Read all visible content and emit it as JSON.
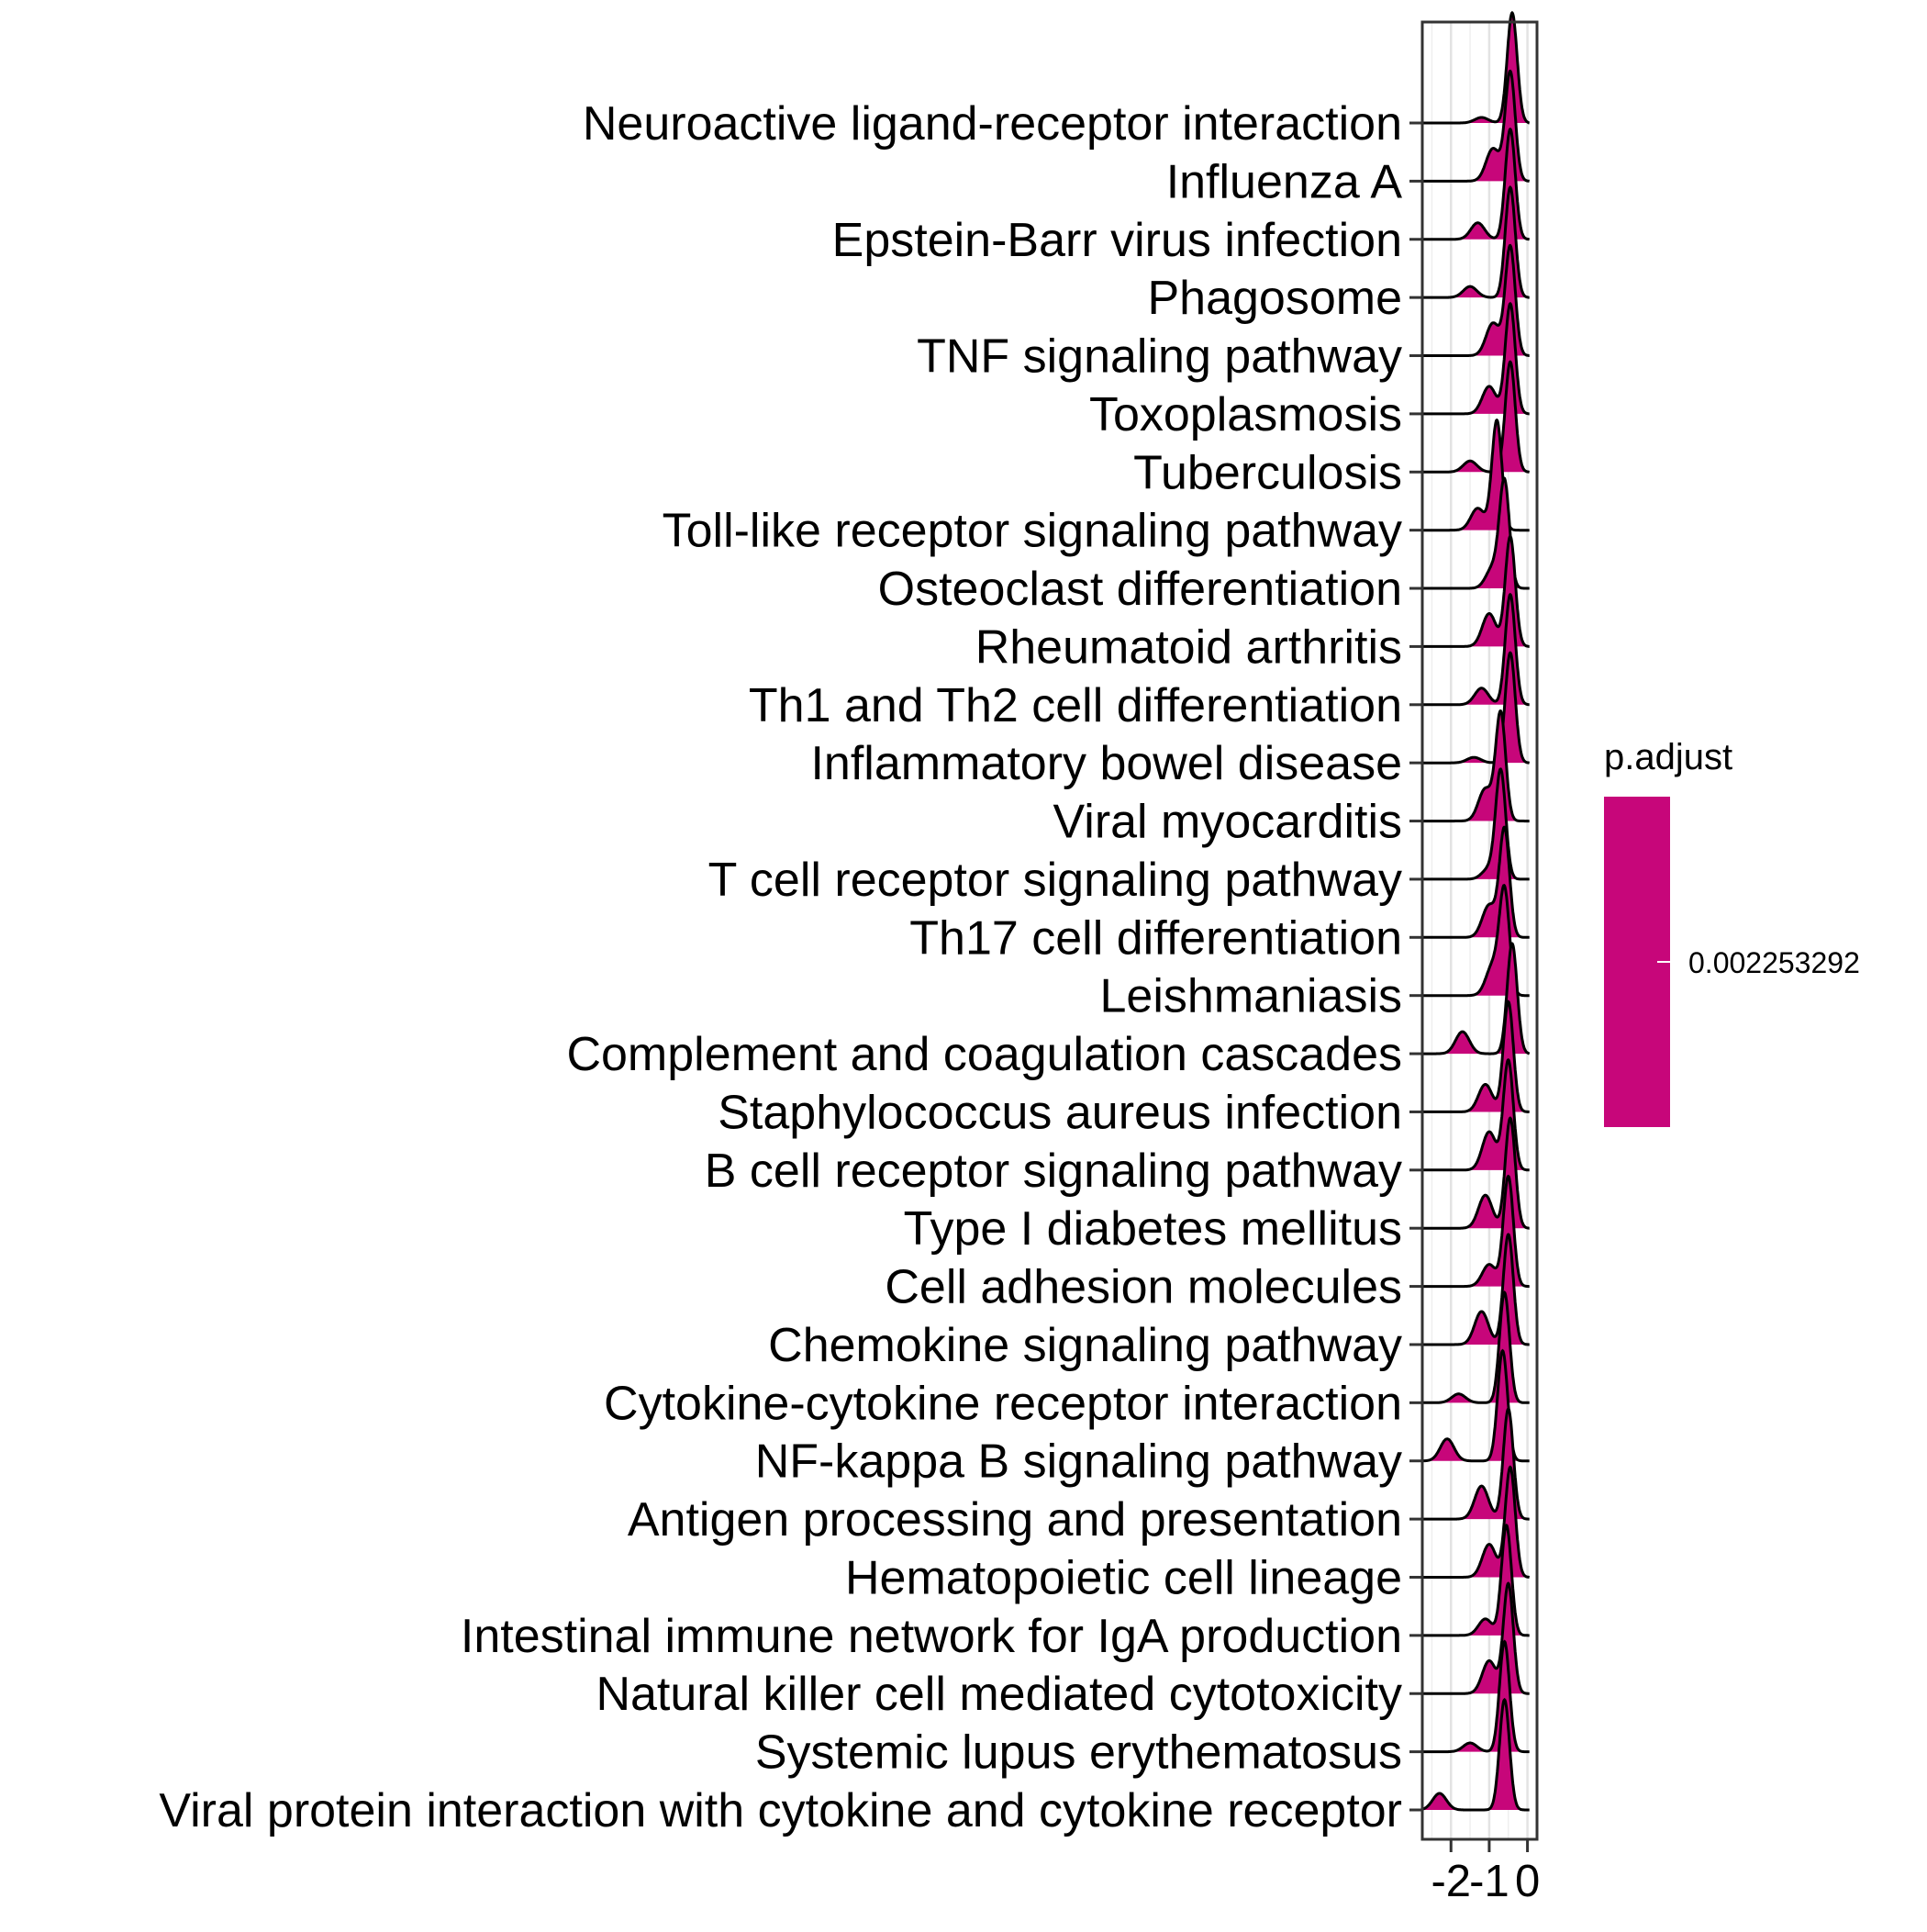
{
  "chart_data": {
    "type": "ridgeline",
    "xlabel": "",
    "ylabel": "",
    "xlim": [
      -2.75,
      0.25
    ],
    "x_ticks": [
      "-2",
      "-1",
      "0"
    ],
    "x_tick_values": [
      -2,
      -1,
      0
    ],
    "grid": true,
    "fill_color": "#C7067A",
    "categories": [
      "Neuroactive ligand-receptor interaction",
      "Influenza A",
      "Epstein-Barr virus infection",
      "Phagosome",
      "TNF signaling pathway",
      "Toxoplasmosis",
      "Tuberculosis",
      "Toll-like receptor signaling pathway",
      "Osteoclast differentiation",
      "Rheumatoid arthritis",
      "Th1 and Th2 cell differentiation",
      "Inflammatory bowel disease",
      "Viral myocarditis",
      "T cell receptor signaling pathway",
      "Th17 cell differentiation",
      "Leishmaniasis",
      "Complement and coagulation cascades",
      "Staphylococcus aureus infection",
      "B cell receptor signaling pathway",
      "Type I diabetes mellitus",
      "Cell adhesion molecules",
      "Chemokine signaling pathway",
      "Cytokine-cytokine receptor interaction",
      "NF-kappa B signaling pathway",
      "Antigen processing and presentation",
      "Hematopoietic cell lineage",
      "Intestinal immune network for IgA production",
      "Natural killer cell mediated cytotoxicity",
      "Systemic lupus erythematosus",
      "Viral protein interaction with cytokine and cytokine receptor"
    ],
    "distribution_peak_x": [
      -0.4,
      -0.45,
      -0.45,
      -0.45,
      -0.45,
      -0.45,
      -0.45,
      -0.8,
      -0.6,
      -0.45,
      -0.45,
      -0.45,
      -0.7,
      -0.7,
      -0.6,
      -0.6,
      -0.4,
      -0.5,
      -0.5,
      -0.45,
      -0.5,
      -0.5,
      -0.6,
      -0.65,
      -0.5,
      -0.45,
      -0.55,
      -0.5,
      -0.6,
      -0.6
    ],
    "distribution_secondary": [
      [
        -1.2,
        0.05
      ],
      [
        -0.9,
        0.3
      ],
      [
        -1.3,
        0.15
      ],
      [
        -1.5,
        0.1
      ],
      [
        -0.9,
        0.3
      ],
      [
        -1.0,
        0.25
      ],
      [
        -1.5,
        0.1
      ],
      [
        -1.3,
        0.2
      ],
      [
        -0.9,
        0.2
      ],
      [
        -1.0,
        0.3
      ],
      [
        -1.2,
        0.15
      ],
      [
        -1.4,
        0.05
      ],
      [
        -1.1,
        0.3
      ],
      [
        -1.0,
        0.1
      ],
      [
        -1.0,
        0.3
      ],
      [
        -0.9,
        0.3
      ],
      [
        -1.7,
        0.2
      ],
      [
        -1.1,
        0.25
      ],
      [
        -1.0,
        0.35
      ],
      [
        -1.1,
        0.3
      ],
      [
        -1.0,
        0.2
      ],
      [
        -1.2,
        0.3
      ],
      [
        -1.8,
        0.08
      ],
      [
        -2.1,
        0.2
      ],
      [
        -1.2,
        0.3
      ],
      [
        -1.0,
        0.3
      ],
      [
        -1.1,
        0.15
      ],
      [
        -1.0,
        0.3
      ],
      [
        -1.5,
        0.08
      ],
      [
        -2.3,
        0.15
      ]
    ],
    "legend": {
      "title": "p.adjust",
      "labels": [
        "0.002253292"
      ],
      "placement": "right"
    }
  }
}
